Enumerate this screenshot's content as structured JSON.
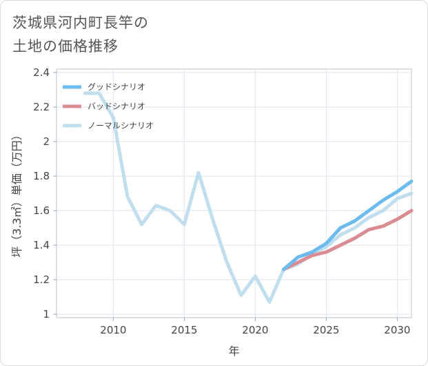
{
  "title_lines": [
    "茨城県河内町長竿の",
    "土地の価格推移"
  ],
  "chart_data": {
    "type": "line",
    "title": "茨城県河内町長竿の土地の価格推移",
    "xlabel": "年",
    "ylabel": "坪（3.3㎡）単価（万円）",
    "xlim": [
      2006,
      2031
    ],
    "ylim": [
      0.98,
      2.42
    ],
    "x_ticks": [
      2010,
      2015,
      2020,
      2025,
      2030
    ],
    "x_tick_labels": [
      "2010",
      "2015",
      "2020",
      "2025",
      "2030"
    ],
    "y_ticks": [
      1,
      1.2,
      1.4,
      1.6,
      1.8,
      2,
      2.2,
      2.4
    ],
    "y_tick_labels": [
      "1",
      "1.2",
      "1.4",
      "1.6",
      "1.8",
      "2",
      "2.2",
      "2.4"
    ],
    "grid": true,
    "legend_position": "top-left",
    "series": [
      {
        "name": "グッドシナリオ",
        "color": "#6bbbef",
        "x": [
          2022,
          2023,
          2024,
          2025,
          2026,
          2027,
          2028,
          2029,
          2030,
          2031
        ],
        "values": [
          1.26,
          1.33,
          1.36,
          1.41,
          1.5,
          1.54,
          1.6,
          1.66,
          1.71,
          1.77
        ]
      },
      {
        "name": "バッドシナリオ",
        "color": "#db8c93",
        "x": [
          2022,
          2023,
          2024,
          2025,
          2026,
          2027,
          2028,
          2029,
          2030,
          2031
        ],
        "values": [
          1.26,
          1.3,
          1.34,
          1.36,
          1.4,
          1.44,
          1.49,
          1.51,
          1.55,
          1.6
        ]
      },
      {
        "name": "ノーマルシナリオ",
        "color": "#c0deed",
        "x": [
          2008,
          2009,
          2010,
          2011,
          2012,
          2013,
          2014,
          2015,
          2016,
          2017,
          2018,
          2019,
          2020,
          2021,
          2022,
          2023,
          2024,
          2025,
          2026,
          2027,
          2028,
          2029,
          2030,
          2031
        ],
        "values": [
          2.28,
          2.28,
          2.14,
          1.68,
          1.52,
          1.63,
          1.6,
          1.52,
          1.82,
          1.55,
          1.3,
          1.11,
          1.22,
          1.07,
          1.26,
          1.29,
          1.35,
          1.39,
          1.46,
          1.5,
          1.56,
          1.6,
          1.67,
          1.7
        ]
      }
    ]
  }
}
